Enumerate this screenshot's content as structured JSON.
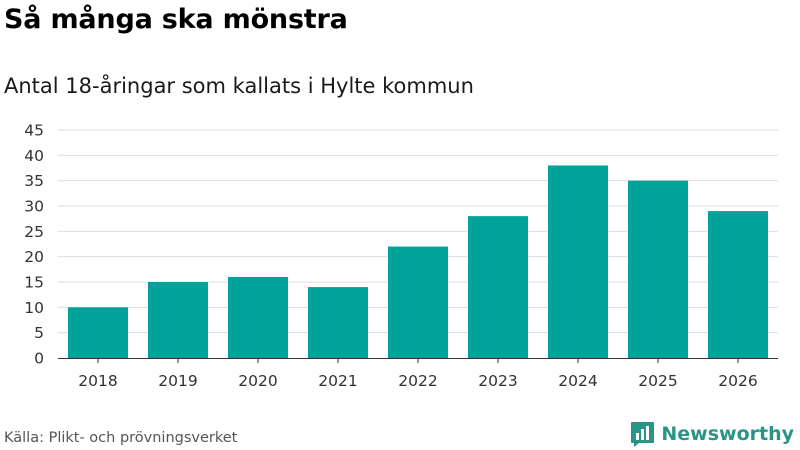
{
  "header": {
    "title": "Så många ska mönstra",
    "subtitle": "Antal 18-åringar som kallats i Hylte kommun"
  },
  "footer": {
    "source": "Källa: Plikt- och prövningsverket",
    "brand": "Newsworthy"
  },
  "colors": {
    "bar": "#00a29a",
    "grid": "#dddddd",
    "axis": "#333333",
    "brand": "#2a9486"
  },
  "chart_data": {
    "type": "bar",
    "title": "Så många ska mönstra",
    "subtitle": "Antal 18-åringar som kallats i Hylte kommun",
    "xlabel": "",
    "ylabel": "",
    "categories": [
      "2018",
      "2019",
      "2020",
      "2021",
      "2022",
      "2023",
      "2024",
      "2025",
      "2026"
    ],
    "values": [
      10,
      15,
      16,
      14,
      22,
      28,
      38,
      35,
      29
    ],
    "ylim": [
      0,
      45
    ],
    "yticks": [
      0,
      5,
      10,
      15,
      20,
      25,
      30,
      35,
      40,
      45
    ],
    "grid": true,
    "legend": "none"
  }
}
